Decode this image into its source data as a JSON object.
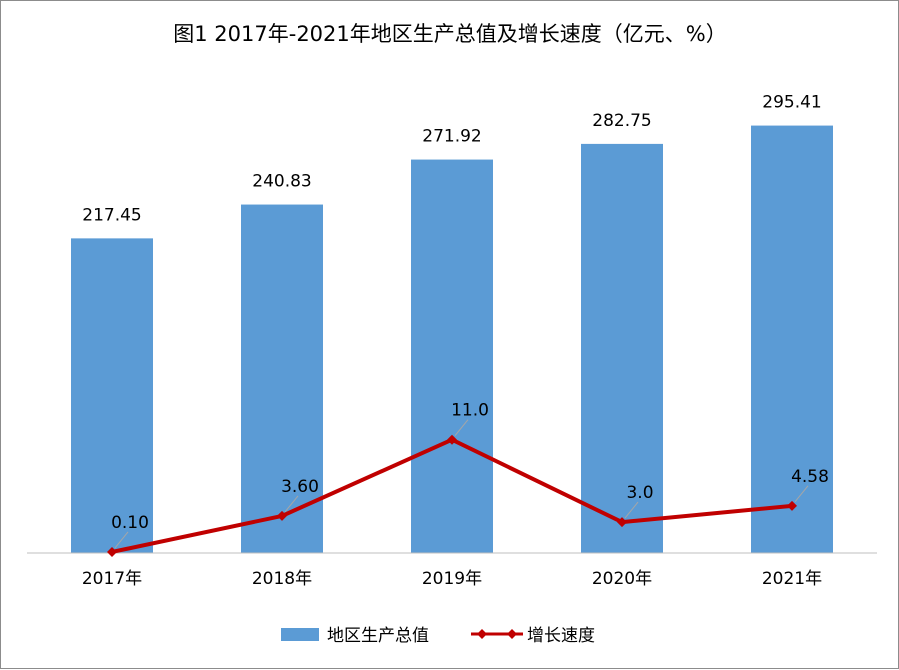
{
  "chart_data": {
    "type": "bar",
    "title": "图1  2017年-2021年地区生产总值及增长速度（亿元、%）",
    "categories": [
      "2017年",
      "2018年",
      "2019年",
      "2020年",
      "2021年"
    ],
    "series": [
      {
        "name": "地区生产总值",
        "type": "bar",
        "color": "#5b9bd5",
        "values": [
          217.45,
          240.83,
          271.92,
          282.75,
          295.41
        ],
        "labels": [
          "217.45",
          "240.83",
          "271.92",
          "282.75",
          "295.41"
        ]
      },
      {
        "name": "增长速度",
        "type": "line",
        "color": "#c00000",
        "marker": "diamond",
        "values": [
          0.1,
          3.6,
          11.0,
          3.0,
          4.58
        ],
        "labels": [
          "0.10",
          "3.60",
          "11.0",
          "3.0",
          "4.58"
        ]
      }
    ],
    "legend_position": "bottom",
    "grid": false
  }
}
